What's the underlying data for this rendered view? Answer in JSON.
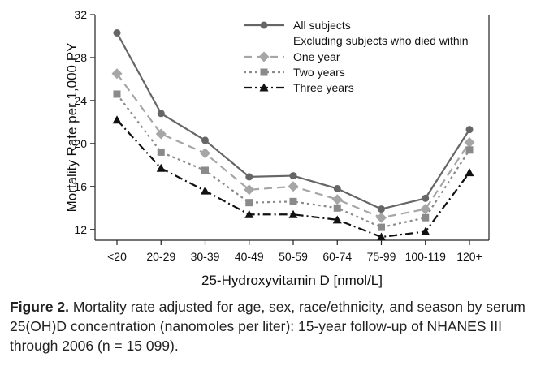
{
  "chart_data": {
    "type": "line",
    "xlabel": "25-Hydroxyvitamin D [nmol/L]",
    "ylabel": "Mortality Rate per 1,000 PY",
    "categories": [
      "<20",
      "20-29",
      "30-39",
      "40-49",
      "50-59",
      "60-74",
      "75-99",
      "100-119",
      "120+"
    ],
    "ylim": [
      11,
      32
    ],
    "yticks": [
      12,
      16,
      20,
      24,
      28,
      32
    ],
    "legend_position": "top-right",
    "legend_subheading": "Excluding subjects who died within",
    "series": [
      {
        "name": "All subjects",
        "values": [
          30.3,
          22.8,
          20.3,
          16.9,
          17.0,
          15.8,
          13.9,
          14.9,
          21.3
        ],
        "color": "#666666",
        "marker": "circle",
        "dash": "solid"
      },
      {
        "name": "One year",
        "values": [
          26.5,
          20.9,
          19.1,
          15.7,
          16.0,
          14.8,
          13.1,
          13.9,
          20.1
        ],
        "color": "#a6a6a6",
        "marker": "diamond",
        "dash": "dashed"
      },
      {
        "name": "Two years",
        "values": [
          24.6,
          19.2,
          17.5,
          14.5,
          14.6,
          14.0,
          12.2,
          13.1,
          19.4
        ],
        "color": "#8a8a8a",
        "marker": "square",
        "dash": "dotted"
      },
      {
        "name": "Three years",
        "values": [
          22.2,
          17.7,
          15.6,
          13.4,
          13.4,
          12.9,
          11.3,
          11.8,
          17.3
        ],
        "color": "#111111",
        "marker": "triangle",
        "dash": "dashdot"
      }
    ]
  },
  "caption": {
    "label": "Figure 2.",
    "text": "Mortality rate adjusted for age, sex, race/ethnicity, and season by serum 25(OH)D concentration (nanomoles per liter): 15-year follow-up of NHANES III through 2006 (n = 15 099)."
  }
}
